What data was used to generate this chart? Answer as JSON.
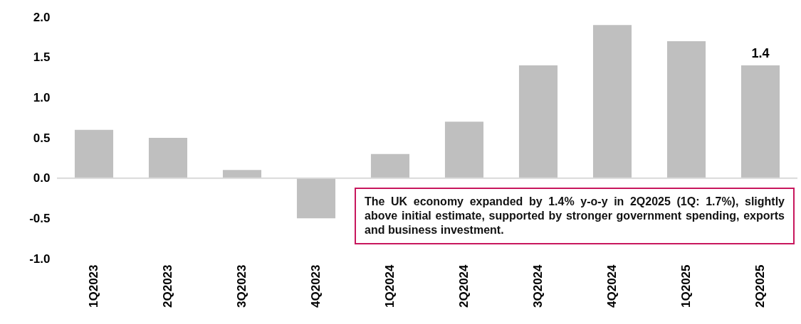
{
  "chart_data": {
    "type": "bar",
    "categories": [
      "1Q2023",
      "2Q2023",
      "3Q2023",
      "4Q2023",
      "1Q2024",
      "2Q2024",
      "3Q2024",
      "4Q2024",
      "1Q2025",
      "2Q2025"
    ],
    "values": [
      0.6,
      0.5,
      0.1,
      -0.5,
      0.3,
      0.7,
      1.4,
      1.9,
      1.7,
      1.4
    ],
    "value_labels": [
      null,
      null,
      null,
      null,
      null,
      null,
      null,
      null,
      null,
      "1.4"
    ],
    "color": "#bfbfbf",
    "ylim": [
      -1.0,
      2.0
    ],
    "yticks": [
      {
        "value": -1,
        "label": "-1.0"
      },
      {
        "value": -0.5,
        "label": "-0.5"
      },
      {
        "value": 0,
        "label": "0.0"
      },
      {
        "value": 0.5,
        "label": "0.5"
      },
      {
        "value": 1,
        "label": "1.0"
      },
      {
        "value": 1.5,
        "label": "1.5"
      },
      {
        "value": 2,
        "label": "2.0"
      }
    ],
    "ref_lines": [
      {
        "axis": "y",
        "value": 0,
        "color": "#d9d9d9"
      }
    ],
    "annotations": [
      "The UK economy expanded by 1.4% y-o-y in 2Q2025 (1Q: 1.7%), slightly above initial estimate, supported by stronger government spending, exports and business investment."
    ],
    "grid": false
  }
}
